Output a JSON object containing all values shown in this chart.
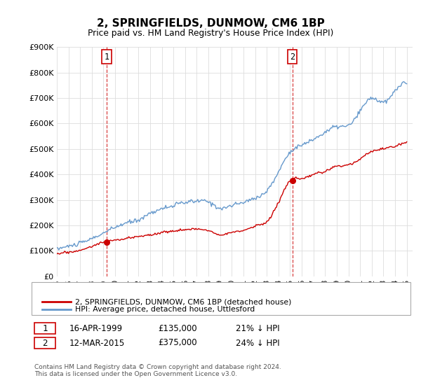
{
  "title": "2, SPRINGFIELDS, DUNMOW, CM6 1BP",
  "subtitle": "Price paid vs. HM Land Registry's House Price Index (HPI)",
  "ylim": [
    0,
    900000
  ],
  "yticks": [
    0,
    100000,
    200000,
    300000,
    400000,
    500000,
    600000,
    700000,
    800000,
    900000
  ],
  "ytick_labels": [
    "£0",
    "£100K",
    "£200K",
    "£300K",
    "£400K",
    "£500K",
    "£600K",
    "£700K",
    "£800K",
    "£900K"
  ],
  "sale1_date": 1999.29,
  "sale1_price": 135000,
  "sale2_date": 2015.19,
  "sale2_price": 375000,
  "sale_color": "#cc0000",
  "hpi_color": "#6699cc",
  "annotation1_date": "16-APR-1999",
  "annotation1_price": "£135,000",
  "annotation1_pct": "21% ↓ HPI",
  "annotation2_date": "12-MAR-2015",
  "annotation2_price": "£375,000",
  "annotation2_pct": "24% ↓ HPI",
  "legend_label1": "2, SPRINGFIELDS, DUNMOW, CM6 1BP (detached house)",
  "legend_label2": "HPI: Average price, detached house, Uttlesford",
  "footer": "Contains HM Land Registry data © Crown copyright and database right 2024.\nThis data is licensed under the Open Government Licence v3.0.",
  "xmin": 1995.0,
  "xmax": 2025.5,
  "hpi_years": [
    1995,
    1996,
    1997,
    1998,
    1999,
    2000,
    2001,
    2002,
    2003,
    2004,
    2005,
    2006,
    2007,
    2008,
    2009,
    2010,
    2011,
    2012,
    2013,
    2014,
    2015,
    2016,
    2017,
    2018,
    2019,
    2020,
    2021,
    2022,
    2023,
    2024,
    2025
  ],
  "hpi_vals": [
    108000,
    118000,
    130000,
    148000,
    170000,
    192000,
    210000,
    222000,
    248000,
    265000,
    278000,
    290000,
    295000,
    292000,
    268000,
    278000,
    290000,
    308000,
    335000,
    410000,
    488000,
    515000,
    538000,
    565000,
    588000,
    592000,
    648000,
    700000,
    682000,
    728000,
    755000
  ],
  "sale_years": [
    1995,
    1996,
    1997,
    1998,
    1999,
    2000,
    2001,
    2002,
    2003,
    2004,
    2005,
    2006,
    2007,
    2008,
    2009,
    2010,
    2011,
    2012,
    2013,
    2014,
    2015,
    2016,
    2017,
    2018,
    2019,
    2020,
    2021,
    2022,
    2023,
    2024,
    2025
  ],
  "sale_vals": [
    88000,
    95000,
    102000,
    118000,
    135000,
    142000,
    148000,
    158000,
    162000,
    172000,
    178000,
    183000,
    185000,
    180000,
    165000,
    172000,
    180000,
    198000,
    215000,
    290000,
    375000,
    382000,
    400000,
    412000,
    432000,
    438000,
    462000,
    490000,
    500000,
    512000,
    528000
  ]
}
